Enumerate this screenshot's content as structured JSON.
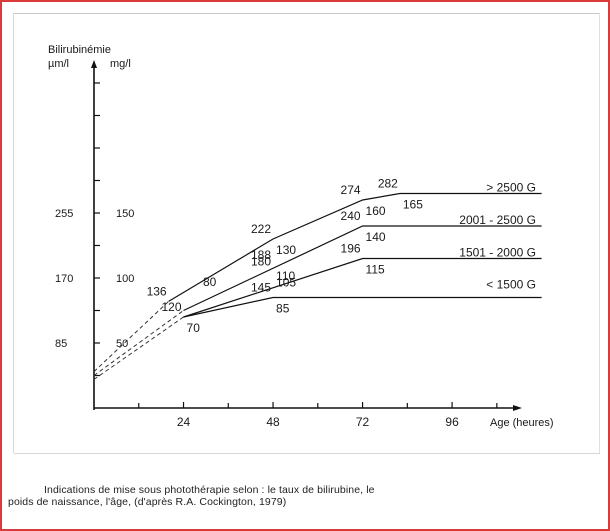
{
  "chart_data": {
    "type": "line",
    "ylabel": "Bilirubinémie",
    "y_units": [
      "µm/l",
      "mg/l"
    ],
    "xlabel": "Age (heures)",
    "x_ticks": [
      24,
      48,
      72,
      96
    ],
    "y_ticks_umol": [
      85,
      170,
      255
    ],
    "y_ticks_mg": [
      50,
      100,
      150
    ],
    "xlim": [
      0,
      120
    ],
    "ylim_mg": [
      0,
      200
    ],
    "series": [
      {
        "name": "> 2500 G",
        "points": [
          [
            20,
            82
          ],
          [
            48,
            130
          ],
          [
            72,
            160
          ],
          [
            82,
            165
          ],
          [
            120,
            165
          ]
        ],
        "labels": [
          {
            "umol": "136",
            "x": 20,
            "y": 82
          },
          {
            "umol": "222",
            "mg": "130",
            "x": 48,
            "y": 130
          },
          {
            "umol": "274",
            "mg": "160",
            "x": 72,
            "y": 160
          },
          {
            "umol": "282",
            "mg": "165",
            "x": 82,
            "y": 165
          }
        ]
      },
      {
        "name": "2001 - 2500 G",
        "points": [
          [
            24,
            75
          ],
          [
            72,
            140
          ],
          [
            120,
            140
          ]
        ],
        "labels": [
          {
            "umol": "188",
            "mg": "110",
            "x": 48,
            "y": 110
          },
          {
            "umol": "240",
            "mg": "140",
            "x": 72,
            "y": 140
          }
        ]
      },
      {
        "name": "1501 - 2000 G",
        "points": [
          [
            24,
            70
          ],
          [
            72,
            115
          ],
          [
            120,
            115
          ]
        ],
        "labels": [
          {
            "umol": "180",
            "mg": "105",
            "x": 48,
            "y": 105
          },
          {
            "umol": "196",
            "mg": "115",
            "x": 72,
            "y": 115
          }
        ]
      },
      {
        "name": "< 1500 G",
        "points": [
          [
            24,
            70
          ],
          [
            48,
            85
          ],
          [
            120,
            85
          ]
        ],
        "labels": [
          {
            "umol": "120",
            "mg": "70",
            "x": 24,
            "y": 70
          },
          {
            "umol": "145",
            "mg": "85",
            "x": 48,
            "y": 85
          }
        ]
      }
    ],
    "extra_label": "80",
    "dashed_extrapolation": true
  },
  "caption": {
    "line1": "Indications de mise sous photothérapie selon : le taux de bilirubine, le",
    "line2": "poids de naissance, l'âge, (d'après R.A. Cockington, 1979)"
  }
}
